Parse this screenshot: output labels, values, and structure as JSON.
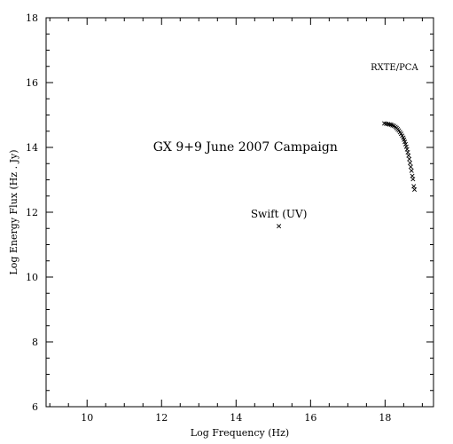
{
  "chart_data": {
    "type": "scatter",
    "title": "",
    "xlabel": "Log Frequency (Hz)",
    "ylabel": "Log Energy Flux (Hz . Jy)",
    "xlim": [
      8.9,
      19.3
    ],
    "ylim": [
      6,
      18
    ],
    "x_ticks": [
      10,
      12,
      14,
      16,
      18
    ],
    "x_tick_labels": [
      "10",
      "12",
      "14",
      "16",
      "18"
    ],
    "y_ticks": [
      6,
      8,
      10,
      12,
      14,
      16,
      18
    ],
    "y_tick_labels": [
      "6",
      "8",
      "10",
      "12",
      "14",
      "16",
      "18"
    ],
    "x_minor_step": 0.5,
    "y_minor_step": 0.5,
    "grid": false,
    "marker": "x",
    "series": [
      {
        "name": "",
        "points": [
          [
            15.15,
            11.57
          ]
        ]
      },
      {
        "name": "",
        "points": [
          [
            17.98,
            14.74
          ],
          [
            18.03,
            14.73
          ],
          [
            18.08,
            14.72
          ],
          [
            18.12,
            14.71
          ],
          [
            18.16,
            14.7
          ],
          [
            18.2,
            14.68
          ],
          [
            18.24,
            14.66
          ],
          [
            18.28,
            14.63
          ],
          [
            18.31,
            14.6
          ],
          [
            18.34,
            14.56
          ],
          [
            18.37,
            14.52
          ],
          [
            18.4,
            14.47
          ],
          [
            18.43,
            14.42
          ],
          [
            18.46,
            14.36
          ],
          [
            18.49,
            14.3
          ],
          [
            18.51,
            14.24
          ],
          [
            18.53,
            14.17
          ],
          [
            18.55,
            14.1
          ],
          [
            18.57,
            14.02
          ],
          [
            18.59,
            13.94
          ],
          [
            18.61,
            13.85
          ],
          [
            18.63,
            13.75
          ],
          [
            18.65,
            13.64
          ],
          [
            18.67,
            13.52
          ],
          [
            18.69,
            13.4
          ],
          [
            18.71,
            13.28
          ],
          [
            18.73,
            13.12
          ],
          [
            18.75,
            13.02
          ],
          [
            18.77,
            12.8
          ],
          [
            18.79,
            12.7
          ]
        ]
      }
    ],
    "annotations": [
      {
        "text": "GX 9+9 June 2007 Campaign",
        "x": 14.25,
        "y": 14.0,
        "size": "large"
      },
      {
        "text": "Swift (UV)",
        "x": 15.15,
        "y": 11.95,
        "size": "medium"
      },
      {
        "text": "RXTE/PCA",
        "x": 18.25,
        "y": 16.5,
        "size": "small"
      }
    ]
  }
}
